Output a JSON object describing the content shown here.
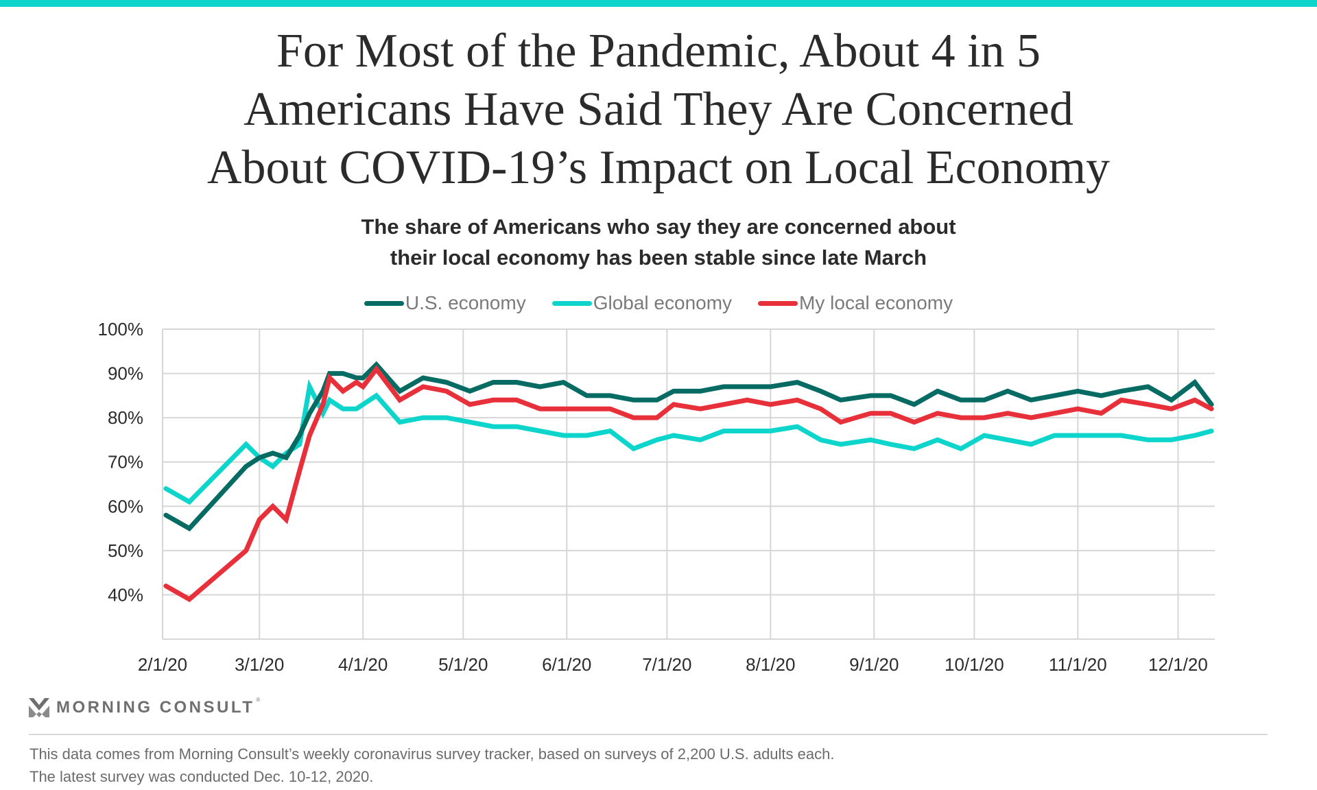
{
  "colors": {
    "brand_teal": "#0dd5cc",
    "us": "#066b63",
    "global": "#0dd5cc",
    "local": "#e8303a",
    "grid": "#d6d6d6"
  },
  "header": {
    "title_lines": [
      "For Most of the Pandemic, About 4 in 5",
      "Americans Have Said They Are Concerned",
      "About COVID-19’s Impact on Local Economy"
    ],
    "subtitle_lines": [
      "The share of Americans who say they are concerned about",
      "their local economy has been stable since late March"
    ]
  },
  "chart_data": {
    "type": "line",
    "title": "For Most of the Pandemic, About 4 in 5 Americans Have Said They Are Concerned About COVID-19’s Impact on Local Economy",
    "subtitle": "The share of Americans who say they are concerned about their local economy has been stable since late March",
    "xlabel": "",
    "ylabel": "",
    "ylim": [
      30,
      100
    ],
    "yticks": [
      40,
      50,
      60,
      70,
      80,
      90,
      100
    ],
    "ytick_labels": [
      "40%",
      "50%",
      "60%",
      "70%",
      "80%",
      "90%",
      "100%"
    ],
    "xlim": [
      "2020-02-01",
      "2020-12-12"
    ],
    "xticks": [
      "2020-02-01",
      "2020-03-01",
      "2020-04-01",
      "2020-05-01",
      "2020-06-01",
      "2020-07-01",
      "2020-08-01",
      "2020-09-01",
      "2020-10-01",
      "2020-11-01",
      "2020-12-01"
    ],
    "xtick_labels": [
      "2/1/20",
      "3/1/20",
      "4/1/20",
      "5/1/20",
      "6/1/20",
      "7/1/20",
      "8/1/20",
      "9/1/20",
      "10/1/20",
      "11/1/20",
      "12/1/20"
    ],
    "grid": true,
    "legend_position": "top-center",
    "x": [
      "2020-02-02",
      "2020-02-09",
      "2020-02-26",
      "2020-03-01",
      "2020-03-05",
      "2020-03-09",
      "2020-03-13",
      "2020-03-16",
      "2020-03-20",
      "2020-03-22",
      "2020-03-26",
      "2020-03-30",
      "2020-04-01",
      "2020-04-05",
      "2020-04-12",
      "2020-04-19",
      "2020-04-26",
      "2020-05-03",
      "2020-05-10",
      "2020-05-17",
      "2020-05-24",
      "2020-05-31",
      "2020-06-07",
      "2020-06-14",
      "2020-06-21",
      "2020-06-28",
      "2020-07-03",
      "2020-07-11",
      "2020-07-18",
      "2020-07-25",
      "2020-08-01",
      "2020-08-09",
      "2020-08-16",
      "2020-08-22",
      "2020-08-31",
      "2020-09-06",
      "2020-09-13",
      "2020-09-20",
      "2020-09-27",
      "2020-10-04",
      "2020-10-11",
      "2020-10-18",
      "2020-10-25",
      "2020-11-01",
      "2020-11-08",
      "2020-11-14",
      "2020-11-22",
      "2020-11-29",
      "2020-12-06",
      "2020-12-11"
    ],
    "series": [
      {
        "name": "U.S. economy",
        "color": "#066b63",
        "values": [
          58,
          55,
          69,
          71,
          72,
          71,
          76,
          81,
          86,
          90,
          90,
          89,
          89,
          92,
          86,
          89,
          88,
          86,
          88,
          88,
          87,
          88,
          85,
          85,
          84,
          84,
          86,
          86,
          87,
          87,
          87,
          88,
          86,
          84,
          85,
          85,
          83,
          86,
          84,
          84,
          86,
          84,
          85,
          86,
          85,
          86,
          87,
          84,
          88,
          83
        ]
      },
      {
        "name": "Global economy",
        "color": "#0dd5cc",
        "values": [
          64,
          61,
          74,
          71,
          69,
          72,
          74,
          87,
          81,
          84,
          82,
          82,
          83,
          85,
          79,
          80,
          80,
          79,
          78,
          78,
          77,
          76,
          76,
          77,
          73,
          75,
          76,
          75,
          77,
          77,
          77,
          78,
          75,
          74,
          75,
          74,
          73,
          75,
          73,
          76,
          75,
          74,
          76,
          76,
          76,
          76,
          75,
          75,
          76,
          77
        ]
      },
      {
        "name": "My local economy",
        "color": "#e8303a",
        "values": [
          42,
          39,
          50,
          57,
          60,
          57,
          68,
          76,
          83,
          89,
          86,
          88,
          87,
          91,
          84,
          87,
          86,
          83,
          84,
          84,
          82,
          82,
          82,
          82,
          80,
          80,
          83,
          82,
          83,
          84,
          83,
          84,
          82,
          79,
          81,
          81,
          79,
          81,
          80,
          80,
          81,
          80,
          81,
          82,
          81,
          84,
          83,
          82,
          84,
          82
        ]
      }
    ]
  },
  "legend": {
    "items": [
      {
        "label": "U.S. economy",
        "color": "#066b63"
      },
      {
        "label": "Global economy",
        "color": "#0dd5cc"
      },
      {
        "label": "My local economy",
        "color": "#e8303a"
      }
    ]
  },
  "footer": {
    "logo_text": "MORNING CONSULT",
    "logo_mark": "®",
    "note_lines": [
      "This data comes from Morning Consult’s weekly coronavirus survey tracker, based on surveys of 2,200 U.S. adults each.",
      "The latest survey was conducted Dec. 10-12, 2020."
    ]
  }
}
